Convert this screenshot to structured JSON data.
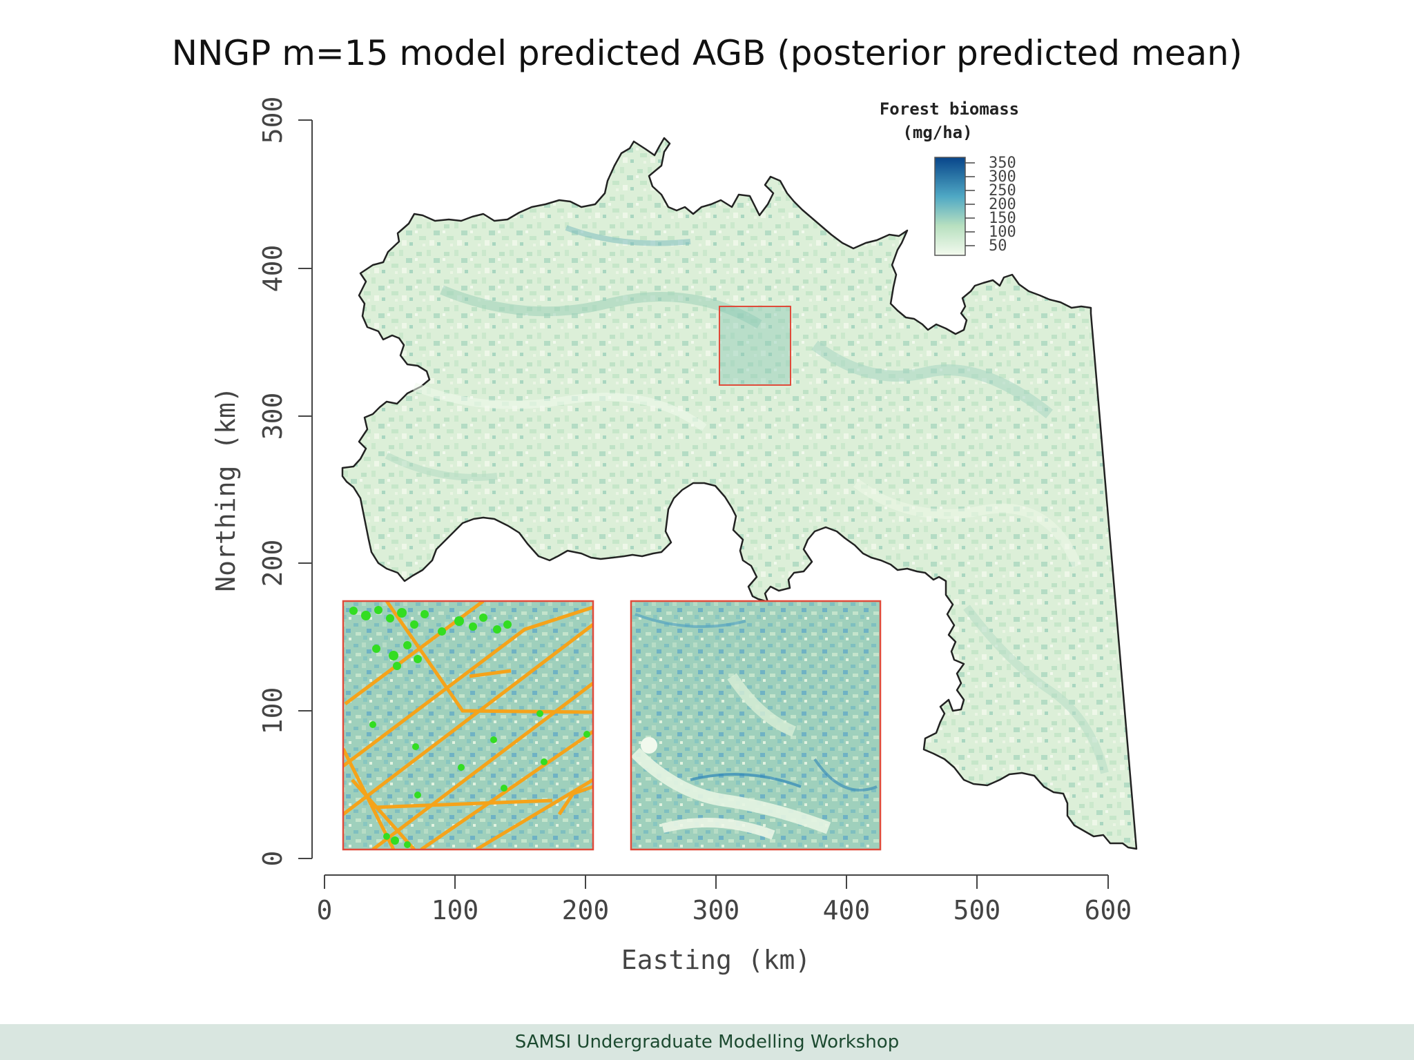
{
  "slide": {
    "title": "NNGP m=15 model predicted AGB (posterior predicted mean)",
    "footer": "SAMSI Undergraduate Modelling Workshop"
  },
  "map": {
    "x_axis": {
      "label": "Easting (km)",
      "ticks": [
        "0",
        "100",
        "200",
        "300",
        "400",
        "500",
        "600"
      ],
      "range": [
        0,
        600
      ]
    },
    "y_axis": {
      "label": "Northing (km)",
      "ticks": [
        "0",
        "100",
        "200",
        "300",
        "400",
        "500"
      ],
      "range": [
        0,
        500
      ]
    },
    "legend": {
      "title_line1": "Forest biomass",
      "title_line2": "(mg/ha)",
      "ticks": [
        "350",
        "300",
        "250",
        "200",
        "150",
        "100",
        "50"
      ],
      "placement": "top-right"
    },
    "colors": {
      "low": "#eef7e8",
      "mid": "#8fcaa8",
      "high": "#2e86b8",
      "max": "#08458a",
      "inset_border": "#e04a3a",
      "flight_lines": "#f5a31a",
      "plots": "#33dd22"
    },
    "inset_region_km": {
      "x": [
        300,
        356
      ],
      "y": [
        321,
        374
      ]
    }
  }
}
